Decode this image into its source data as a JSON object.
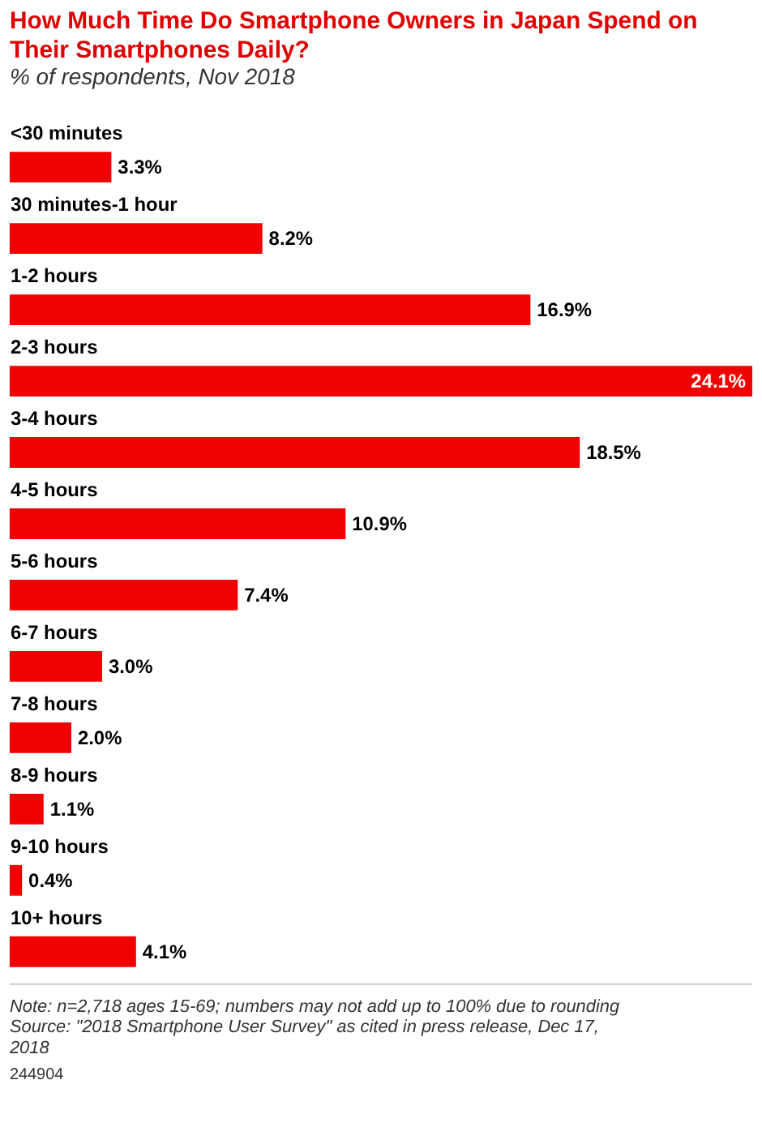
{
  "chart_data": {
    "type": "bar",
    "orientation": "horizontal",
    "title": "How Much Time Do Smartphone Owners in Japan Spend on Their Smartphones Daily?",
    "subtitle": "% of respondents, Nov 2018",
    "categories": [
      "<30 minutes",
      "30 minutes-1 hour",
      "1-2 hours",
      "2-3 hours",
      "3-4 hours",
      "4-5 hours",
      "5-6 hours",
      "6-7 hours",
      "7-8 hours",
      "8-9 hours",
      "9-10 hours",
      "10+ hours"
    ],
    "values": [
      3.3,
      8.2,
      16.9,
      24.1,
      18.5,
      10.9,
      7.4,
      3.0,
      2.0,
      1.1,
      0.4,
      4.1
    ],
    "value_labels": [
      "3.3%",
      "8.2%",
      "16.9%",
      "24.1%",
      "18.5%",
      "10.9%",
      "7.4%",
      "3.0%",
      "2.0%",
      "1.1%",
      "0.4%",
      "4.1%"
    ],
    "color": "#f00000",
    "grid": false,
    "annotations": [
      "Note: n=2,718 ages 15-69; numbers may not add up to 100% due to rounding",
      "Source: \"2018 Smartphone User Survey\" as cited in press release, Dec 17, 2018",
      "244904"
    ]
  }
}
